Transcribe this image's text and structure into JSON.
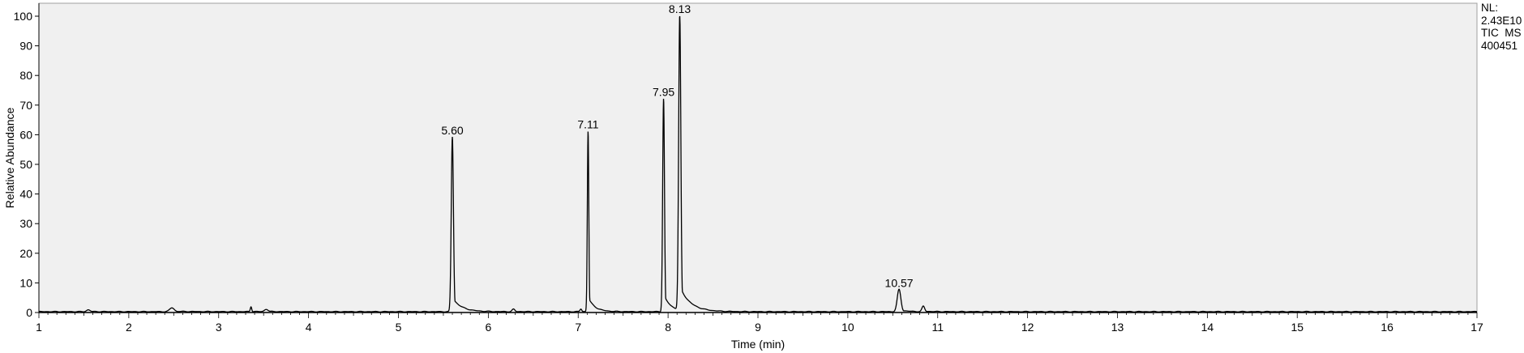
{
  "chart_data": {
    "type": "line",
    "xlabel": "Time (min)",
    "ylabel": "Relative Abundance",
    "xlim": [
      1,
      17
    ],
    "ylim": [
      0,
      100
    ],
    "x_ticks": [
      1,
      2,
      3,
      4,
      5,
      6,
      7,
      8,
      9,
      10,
      11,
      12,
      13,
      14,
      15,
      16,
      17
    ],
    "y_ticks": [
      0,
      10,
      20,
      30,
      40,
      50,
      60,
      70,
      80,
      90,
      100
    ],
    "grid": false,
    "plot_background": "#f0f0f0",
    "line_color": "#000000",
    "baseline": 0.3,
    "peaks": [
      {
        "rt": 1.55,
        "height": 0.6,
        "width": 0.02,
        "tail": 0.03,
        "label": ""
      },
      {
        "rt": 2.48,
        "height": 1.3,
        "width": 0.025,
        "tail": 0.05,
        "label": ""
      },
      {
        "rt": 3.36,
        "height": 1.7,
        "width": 0.008,
        "tail": 0.01,
        "label": ""
      },
      {
        "rt": 3.53,
        "height": 0.8,
        "width": 0.02,
        "tail": 0.03,
        "label": ""
      },
      {
        "rt": 5.6,
        "height": 59.0,
        "width": 0.012,
        "tail": 0.025,
        "label": "5.60"
      },
      {
        "rt": 6.28,
        "height": 0.8,
        "width": 0.015,
        "tail": 0.02,
        "label": ""
      },
      {
        "rt": 7.03,
        "height": 0.9,
        "width": 0.01,
        "tail": 0.02,
        "label": ""
      },
      {
        "rt": 7.11,
        "height": 61.0,
        "width": 0.008,
        "tail": 0.018,
        "label": "7.11"
      },
      {
        "rt": 7.95,
        "height": 72.0,
        "width": 0.01,
        "tail": 0.02,
        "label": "7.95"
      },
      {
        "rt": 8.13,
        "height": 100.0,
        "width": 0.012,
        "tail": 0.03,
        "label": "8.13"
      },
      {
        "rt": 10.57,
        "height": 7.5,
        "width": 0.02,
        "tail": 0.02,
        "label": "10.57"
      },
      {
        "rt": 10.84,
        "height": 1.8,
        "width": 0.015,
        "tail": 0.02,
        "label": ""
      }
    ],
    "annotations": [
      "NL:",
      "2.43E10",
      "TIC  MS",
      "400451"
    ]
  }
}
